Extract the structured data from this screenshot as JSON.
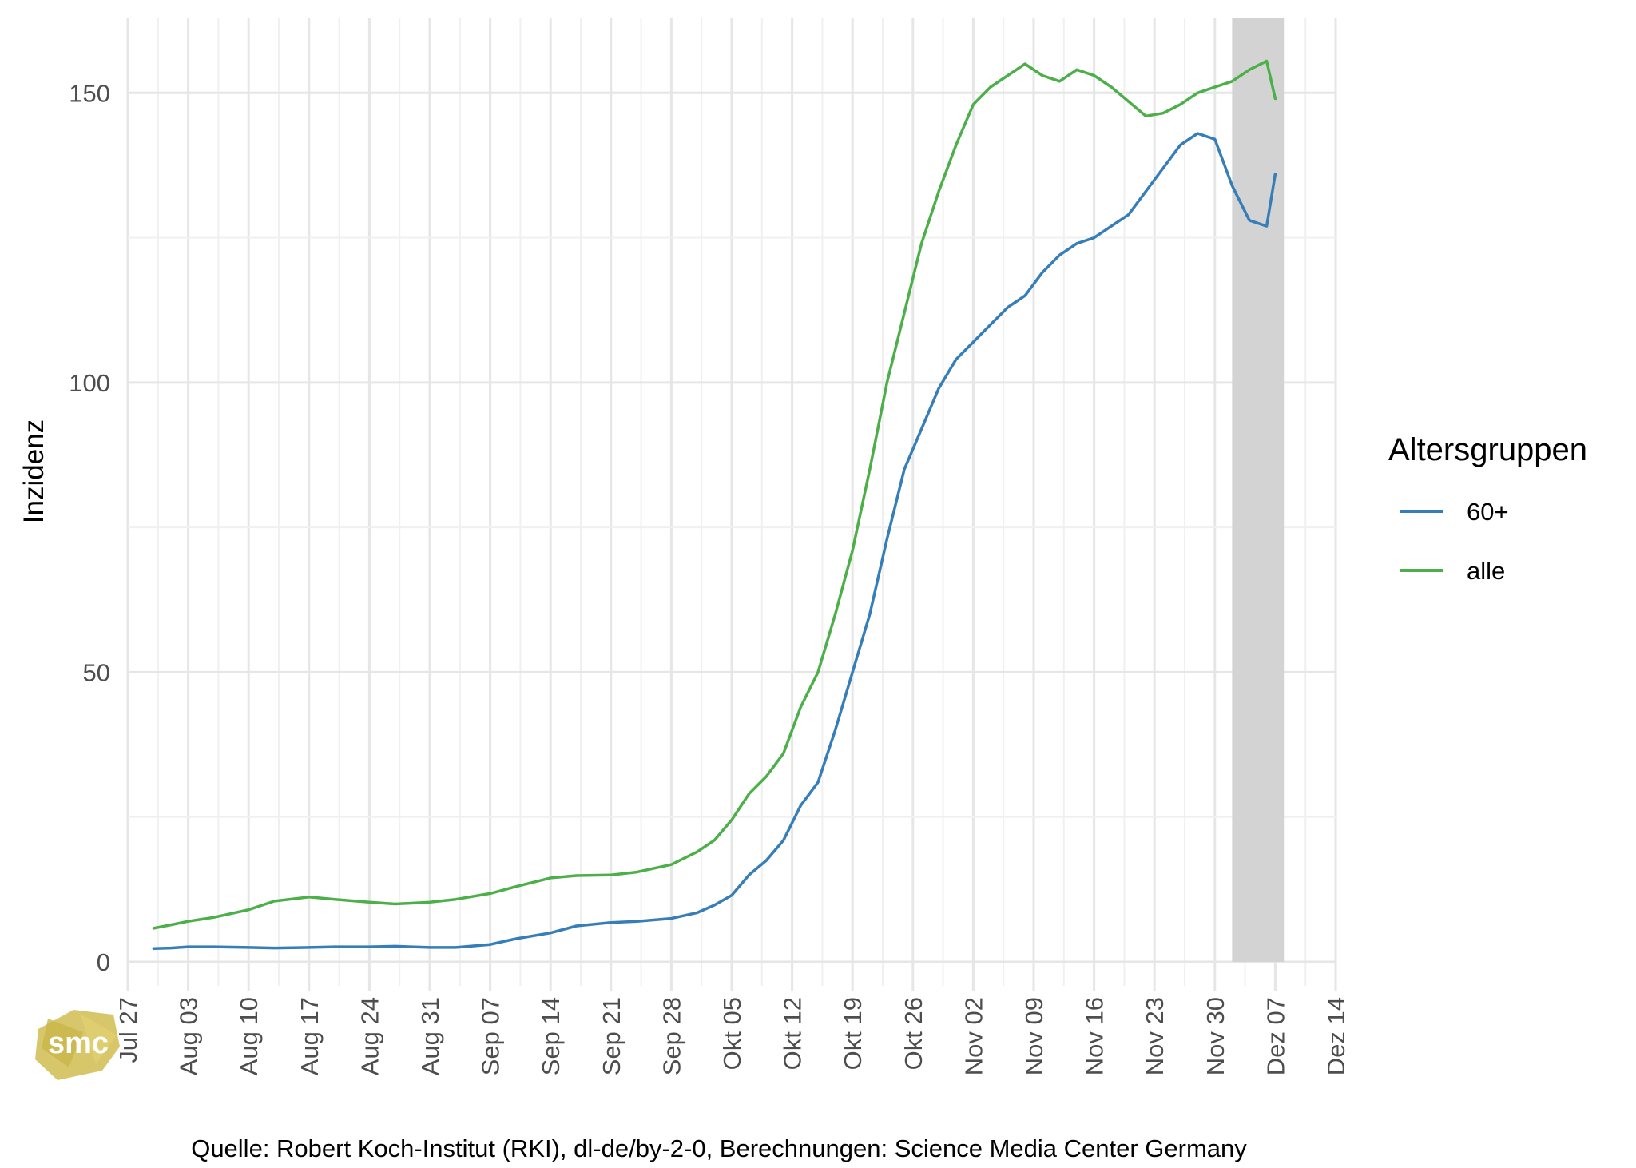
{
  "chart_data": {
    "type": "line",
    "ylabel": "Inzidenz",
    "xlabel": "",
    "ylim": [
      0,
      163
    ],
    "xlim": [
      "2020-07-27",
      "2020-12-14"
    ],
    "yticks": [
      0,
      50,
      100,
      150
    ],
    "y_tick_labels": [
      "0",
      "50",
      "100",
      "150"
    ],
    "x_tick_labels": [
      "Jul 27",
      "Aug 03",
      "Aug 10",
      "Aug 17",
      "Aug 24",
      "Aug 31",
      "Sep 07",
      "Sep 14",
      "Sep 21",
      "Sep 28",
      "Okt 05",
      "Okt 12",
      "Okt 19",
      "Okt 26",
      "Nov 02",
      "Nov 09",
      "Nov 16",
      "Nov 23",
      "Nov 30",
      "Dez 07",
      "Dez 14"
    ],
    "grid": true,
    "shaded_region": {
      "x_start": "2020-12-02",
      "x_end": "2020-12-08",
      "color": "#d3d3d3"
    },
    "legend": {
      "title": "Altersgruppen",
      "placement": "right"
    },
    "caption": "Quelle: Robert Koch-Institut (RKI), dl-de/by-2-0, Berechnungen: Science Media Center Germany",
    "logo_text": "smc",
    "series": [
      {
        "name": "60+",
        "color": "#377eb8",
        "x": [
          "2020-07-30",
          "2020-08-01",
          "2020-08-03",
          "2020-08-06",
          "2020-08-10",
          "2020-08-13",
          "2020-08-17",
          "2020-08-20",
          "2020-08-24",
          "2020-08-27",
          "2020-08-31",
          "2020-09-03",
          "2020-09-07",
          "2020-09-10",
          "2020-09-14",
          "2020-09-17",
          "2020-09-21",
          "2020-09-24",
          "2020-09-28",
          "2020-10-01",
          "2020-10-03",
          "2020-10-05",
          "2020-10-07",
          "2020-10-09",
          "2020-10-11",
          "2020-10-13",
          "2020-10-15",
          "2020-10-17",
          "2020-10-19",
          "2020-10-21",
          "2020-10-23",
          "2020-10-25",
          "2020-10-27",
          "2020-10-29",
          "2020-10-31",
          "2020-11-02",
          "2020-11-04",
          "2020-11-06",
          "2020-11-08",
          "2020-11-10",
          "2020-11-12",
          "2020-11-14",
          "2020-11-16",
          "2020-11-18",
          "2020-11-20",
          "2020-11-22",
          "2020-11-24",
          "2020-11-26",
          "2020-11-28",
          "2020-11-30",
          "2020-12-02",
          "2020-12-04",
          "2020-12-06",
          "2020-12-07"
        ],
        "values": [
          2.3,
          2.4,
          2.6,
          2.6,
          2.5,
          2.4,
          2.5,
          2.6,
          2.6,
          2.7,
          2.5,
          2.5,
          3.0,
          4.0,
          5.0,
          6.2,
          6.8,
          7.0,
          7.5,
          8.5,
          9.8,
          11.5,
          15,
          17.5,
          21,
          27,
          31,
          40,
          50,
          60,
          73,
          85,
          92,
          99,
          104,
          107,
          110,
          113,
          115,
          119,
          122,
          124,
          125,
          127,
          129,
          133,
          137,
          141,
          143,
          142,
          134,
          128,
          127,
          136
        ],
        "note": ""
      },
      {
        "name": "alle",
        "color": "#4daf4a",
        "x": [
          "2020-07-30",
          "2020-08-01",
          "2020-08-03",
          "2020-08-06",
          "2020-08-10",
          "2020-08-13",
          "2020-08-17",
          "2020-08-20",
          "2020-08-24",
          "2020-08-27",
          "2020-08-31",
          "2020-09-03",
          "2020-09-07",
          "2020-09-10",
          "2020-09-14",
          "2020-09-17",
          "2020-09-21",
          "2020-09-24",
          "2020-09-28",
          "2020-10-01",
          "2020-10-03",
          "2020-10-05",
          "2020-10-07",
          "2020-10-09",
          "2020-10-11",
          "2020-10-13",
          "2020-10-15",
          "2020-10-17",
          "2020-10-19",
          "2020-10-21",
          "2020-10-23",
          "2020-10-25",
          "2020-10-27",
          "2020-10-29",
          "2020-10-31",
          "2020-11-02",
          "2020-11-04",
          "2020-11-06",
          "2020-11-08",
          "2020-11-10",
          "2020-11-12",
          "2020-11-14",
          "2020-11-16",
          "2020-11-18",
          "2020-11-20",
          "2020-11-22",
          "2020-11-24",
          "2020-11-26",
          "2020-11-28",
          "2020-11-30",
          "2020-12-02",
          "2020-12-04",
          "2020-12-06",
          "2020-12-07"
        ],
        "values": [
          5.8,
          6.4,
          7.0,
          7.7,
          9.0,
          10.5,
          11.2,
          10.8,
          10.3,
          10.0,
          10.3,
          10.8,
          11.8,
          13.0,
          14.5,
          14.9,
          15.0,
          15.5,
          16.8,
          19.0,
          21.0,
          24.5,
          29.0,
          32.0,
          36.0,
          44.0,
          50.0,
          60.0,
          71.0,
          85.0,
          100.0,
          112.0,
          124.0,
          133.0,
          141.0,
          148.0,
          151.0,
          153.0,
          155.0,
          153.0,
          152.0,
          154.0,
          153.0,
          151.0,
          148.5,
          146.0,
          146.5,
          148.0,
          150.0,
          151.0,
          152.0,
          154.0,
          155.5,
          149.0
        ]
      }
    ]
  }
}
